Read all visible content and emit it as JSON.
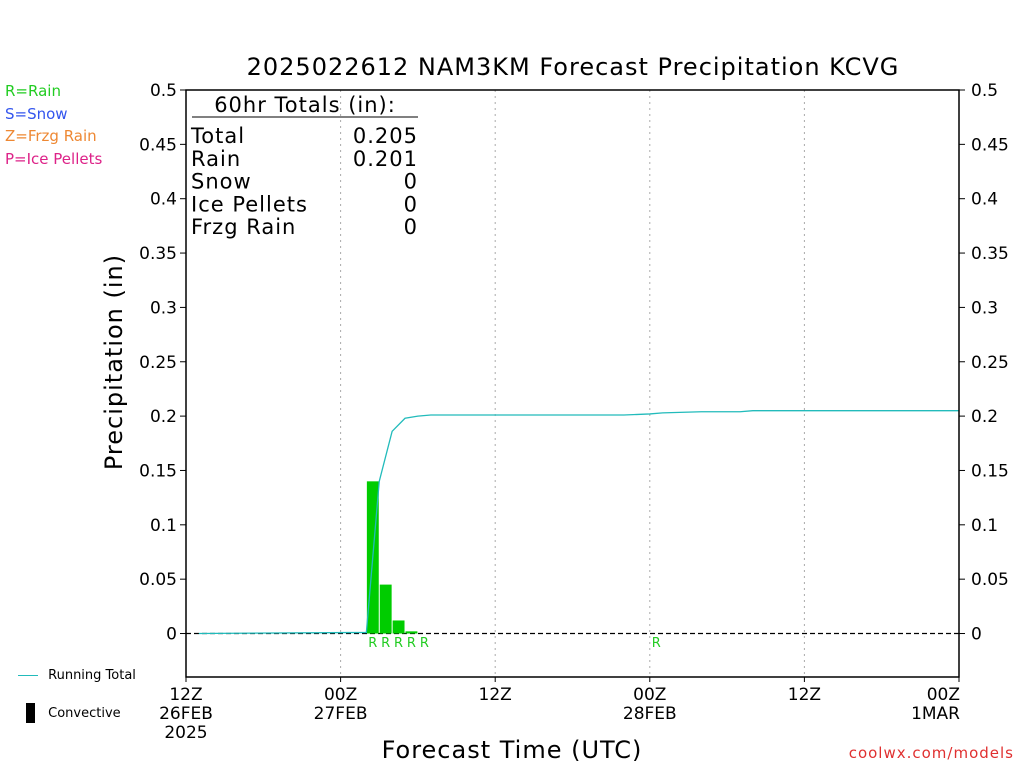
{
  "type_legend": [
    {
      "label": "R=Rain",
      "color": "#22cc22"
    },
    {
      "label": "S=Snow",
      "color": "#3355ee"
    },
    {
      "label": "Z=Frzg Rain",
      "color": "#ee8833"
    },
    {
      "label": "P=Ice Pellets",
      "color": "#dd2288"
    }
  ],
  "bottom_legend": {
    "running_total_label": "Running Total",
    "convective_label": "Convective"
  },
  "credit": "coolwx.com/models",
  "colors": {
    "running_total": "#22bbbb",
    "rain_bar": "#00cc00",
    "rain_marker": "#22cc22",
    "grid": "#aaaaaa"
  },
  "chart_data": {
    "type": "bar",
    "title": "2025022612 NAM3KM Forecast Precipitation KCVG",
    "xlabel": "Forecast Time (UTC)",
    "ylabel": "Precipitation (in)",
    "ylim": [
      -0.04,
      0.5
    ],
    "y_ticks": [
      "0",
      "0.05",
      "0.1",
      "0.15",
      "0.2",
      "0.25",
      "0.3",
      "0.35",
      "0.4",
      "0.45",
      "0.5"
    ],
    "y_tick_values": [
      0,
      0.05,
      0.1,
      0.15,
      0.2,
      0.25,
      0.3,
      0.35,
      0.4,
      0.45,
      0.5
    ],
    "x_range_hours": [
      0,
      60
    ],
    "x_ticks": [
      {
        "hour": 0,
        "lines": [
          "12Z",
          "26FEB",
          "2025"
        ]
      },
      {
        "hour": 12,
        "lines": [
          "00Z",
          "27FEB"
        ]
      },
      {
        "hour": 24,
        "lines": [
          "12Z"
        ]
      },
      {
        "hour": 36,
        "lines": [
          "00Z",
          "28FEB"
        ]
      },
      {
        "hour": 48,
        "lines": [
          "12Z"
        ]
      },
      {
        "hour": 60,
        "lines": [
          "00Z",
          "1MAR"
        ]
      }
    ],
    "totals_box": {
      "header": "60hr Totals (in):",
      "rows": [
        {
          "label": "Total",
          "value": "0.205"
        },
        {
          "label": "Rain",
          "value": "0.201"
        },
        {
          "label": "Snow",
          "value": "0"
        },
        {
          "label": "Ice Pellets",
          "value": "0"
        },
        {
          "label": "Frzg Rain",
          "value": "0"
        }
      ]
    },
    "hourly_precip": [
      {
        "hour": 15,
        "value": 0.14
      },
      {
        "hour": 16,
        "value": 0.045
      },
      {
        "hour": 17,
        "value": 0.012
      },
      {
        "hour": 18,
        "value": 0.002
      }
    ],
    "precip_type_markers": [
      {
        "hour": 15,
        "type": "R"
      },
      {
        "hour": 16,
        "type": "R"
      },
      {
        "hour": 17,
        "type": "R"
      },
      {
        "hour": 18,
        "type": "R"
      },
      {
        "hour": 19,
        "type": "R"
      },
      {
        "hour": 37,
        "type": "R"
      }
    ],
    "running_total": [
      {
        "hour": 1,
        "value": 0
      },
      {
        "hour": 14,
        "value": 0.001
      },
      {
        "hour": 15,
        "value": 0.14
      },
      {
        "hour": 16,
        "value": 0.186
      },
      {
        "hour": 17,
        "value": 0.198
      },
      {
        "hour": 18,
        "value": 0.2
      },
      {
        "hour": 19,
        "value": 0.201
      },
      {
        "hour": 34,
        "value": 0.201
      },
      {
        "hour": 36,
        "value": 0.202
      },
      {
        "hour": 37,
        "value": 0.203
      },
      {
        "hour": 40,
        "value": 0.204
      },
      {
        "hour": 43,
        "value": 0.204
      },
      {
        "hour": 44,
        "value": 0.205
      },
      {
        "hour": 60,
        "value": 0.205
      }
    ]
  }
}
